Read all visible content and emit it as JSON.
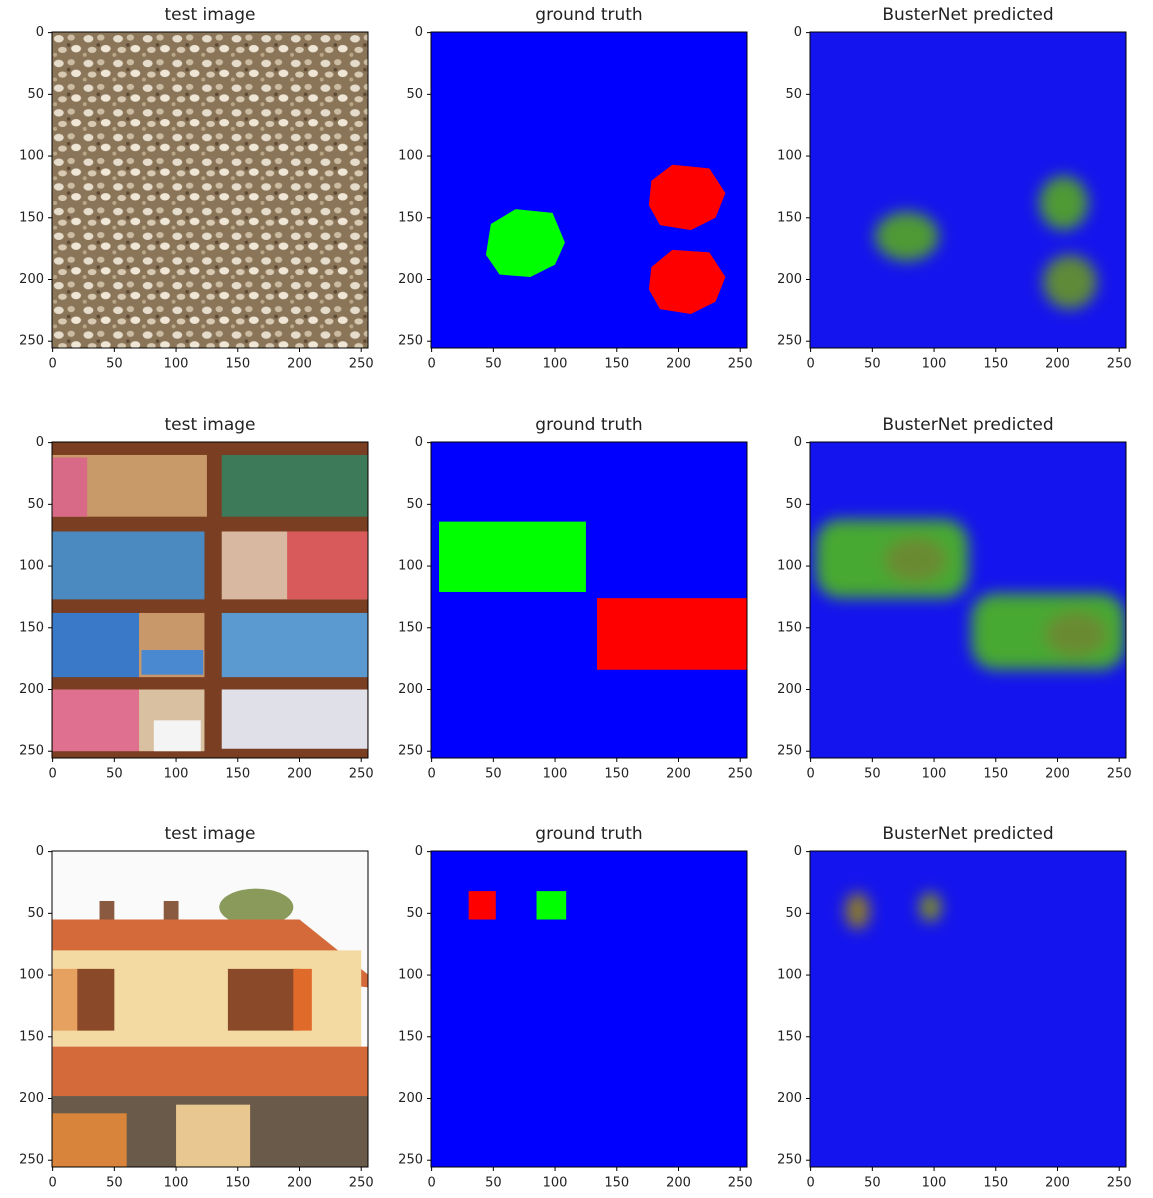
{
  "chart_data": [
    {
      "type": "image",
      "title": "test image",
      "xlim": [
        -0.5,
        255.5
      ],
      "ylim": [
        255.5,
        -0.5
      ],
      "xticks": [
        0,
        50,
        100,
        150,
        200,
        250
      ],
      "yticks": [
        0,
        50,
        100,
        150,
        200,
        250
      ]
    },
    {
      "type": "image",
      "title": "ground truth",
      "xlim": [
        -0.5,
        255.5
      ],
      "ylim": [
        255.5,
        -0.5
      ],
      "xticks": [
        0,
        50,
        100,
        150,
        200,
        250
      ],
      "yticks": [
        0,
        50,
        100,
        150,
        200,
        250
      ]
    },
    {
      "type": "image",
      "title": "BusterNet predicted",
      "xlim": [
        -0.5,
        255.5
      ],
      "ylim": [
        255.5,
        -0.5
      ],
      "xticks": [
        0,
        50,
        100,
        150,
        200,
        250
      ],
      "yticks": [
        0,
        50,
        100,
        150,
        200,
        250
      ]
    },
    {
      "type": "image",
      "title": "test image",
      "xlim": [
        -0.5,
        255.5
      ],
      "ylim": [
        255.5,
        -0.5
      ],
      "xticks": [
        0,
        50,
        100,
        150,
        200,
        250
      ],
      "yticks": [
        0,
        50,
        100,
        150,
        200,
        250
      ]
    },
    {
      "type": "image",
      "title": "ground truth",
      "xlim": [
        -0.5,
        255.5
      ],
      "ylim": [
        255.5,
        -0.5
      ],
      "xticks": [
        0,
        50,
        100,
        150,
        200,
        250
      ],
      "yticks": [
        0,
        50,
        100,
        150,
        200,
        250
      ]
    },
    {
      "type": "image",
      "title": "BusterNet predicted",
      "xlim": [
        -0.5,
        255.5
      ],
      "ylim": [
        255.5,
        -0.5
      ],
      "xticks": [
        0,
        50,
        100,
        150,
        200,
        250
      ],
      "yticks": [
        0,
        50,
        100,
        150,
        200,
        250
      ]
    },
    {
      "type": "image",
      "title": "test image",
      "xlim": [
        -0.5,
        255.5
      ],
      "ylim": [
        255.5,
        -0.5
      ],
      "xticks": [
        0,
        50,
        100,
        150,
        200,
        250
      ],
      "yticks": [
        0,
        50,
        100,
        150,
        200,
        250
      ]
    },
    {
      "type": "image",
      "title": "ground truth",
      "xlim": [
        -0.5,
        255.5
      ],
      "ylim": [
        255.5,
        -0.5
      ],
      "xticks": [
        0,
        50,
        100,
        150,
        200,
        250
      ],
      "yticks": [
        0,
        50,
        100,
        150,
        200,
        250
      ]
    },
    {
      "type": "image",
      "title": "BusterNet predicted",
      "xlim": [
        -0.5,
        255.5
      ],
      "ylim": [
        255.5,
        -0.5
      ],
      "xticks": [
        0,
        50,
        100,
        150,
        200,
        250
      ],
      "yticks": [
        0,
        50,
        100,
        150,
        200,
        250
      ]
    }
  ]
}
